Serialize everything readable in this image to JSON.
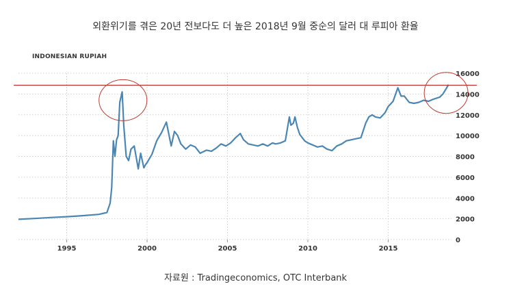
{
  "chart_data": {
    "type": "line",
    "title": "외환위기를 겪은 20년 전보다도 더 높은 2018년 9월 중순의 달러 대 루피아 환율",
    "series_label": "INDONESIAN RUPIAH",
    "source": "자료원 : Tradingeconomics, OTC Interbank",
    "xlim": [
      1992,
      2018.85
    ],
    "ylim": [
      0,
      16000
    ],
    "x_ticks": [
      1995,
      2000,
      2005,
      2010,
      2015
    ],
    "y_ticks": [
      0,
      2000,
      4000,
      6000,
      8000,
      10000,
      12000,
      14000,
      16000
    ],
    "grid": true,
    "line_color": "#4a86b4",
    "reference_line": {
      "value": 14850,
      "color": "#b83030"
    },
    "circle_color": "#c0392b",
    "highlights": [
      {
        "x": 1998.5,
        "y": 14200
      },
      {
        "x": 2018.6,
        "y": 14900
      }
    ],
    "series": [
      {
        "x": [
          1992,
          1993,
          1994,
          1995,
          1996,
          1997,
          1997.5,
          1997.7,
          1997.8,
          1997.9,
          1998.0,
          1998.1,
          1998.2,
          1998.3,
          1998.45,
          1998.55,
          1998.7,
          1998.85,
          1999.0,
          1999.2,
          1999.45,
          1999.6,
          1999.8,
          1999.9,
          2000.0,
          2000.3,
          2000.6,
          2000.9,
          2001.2,
          2001.5,
          2001.7,
          2001.9,
          2002.1,
          2002.4,
          2002.7,
          2003.0,
          2003.3,
          2003.7,
          2004.0,
          2004.3,
          2004.6,
          2004.9,
          2005.2,
          2005.5,
          2005.8,
          2006.0,
          2006.3,
          2006.6,
          2006.9,
          2007.2,
          2007.5,
          2007.8,
          2008.0,
          2008.3,
          2008.6,
          2008.85,
          2008.95,
          2009.1,
          2009.2,
          2009.35,
          2009.5,
          2009.8,
          2010.0,
          2010.3,
          2010.6,
          2010.9,
          2011.2,
          2011.5,
          2011.8,
          2012.1,
          2012.4,
          2012.7,
          2013.0,
          2013.3,
          2013.6,
          2013.8,
          2014.0,
          2014.2,
          2014.5,
          2014.8,
          2015.0,
          2015.3,
          2015.6,
          2015.8,
          2016.0,
          2016.3,
          2016.6,
          2016.9,
          2017.2,
          2017.5,
          2017.8,
          2018.0,
          2018.2,
          2018.4,
          2018.6,
          2018.75
        ],
        "values": [
          1950,
          2030,
          2120,
          2200,
          2300,
          2420,
          2600,
          3500,
          5000,
          9500,
          8000,
          9600,
          10000,
          13200,
          14200,
          11000,
          8000,
          7600,
          8700,
          9000,
          6800,
          8300,
          6900,
          7200,
          7400,
          8200,
          9500,
          10300,
          11300,
          9000,
          10400,
          10000,
          9200,
          8700,
          9100,
          8900,
          8300,
          8600,
          8500,
          8800,
          9200,
          9000,
          9300,
          9800,
          10200,
          9600,
          9200,
          9100,
          9000,
          9200,
          9000,
          9300,
          9200,
          9300,
          9500,
          11800,
          11000,
          11200,
          11800,
          10800,
          10100,
          9500,
          9300,
          9100,
          8900,
          9000,
          8700,
          8550,
          9000,
          9200,
          9500,
          9600,
          9700,
          9800,
          11200,
          11800,
          12000,
          11800,
          11700,
          12200,
          12800,
          13300,
          14600,
          13800,
          13800,
          13200,
          13100,
          13200,
          13400,
          13300,
          13500,
          13600,
          13700,
          14000,
          14500,
          14900
        ]
      }
    ]
  }
}
